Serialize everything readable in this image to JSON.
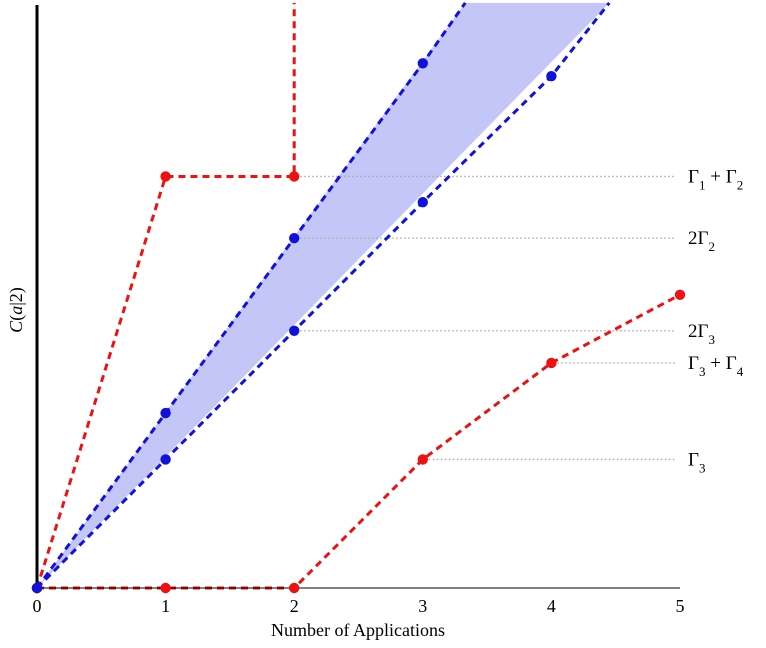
{
  "chart_data": {
    "type": "line",
    "xlabel": "Number of Applications",
    "ylabel": "C(a|2)",
    "xlim": [
      0,
      5
    ],
    "x_ticks": [
      0,
      1,
      2,
      3,
      4,
      5
    ],
    "grid": false,
    "legend": "none",
    "colors": {
      "red": "#ee1111",
      "blue": "#1111dd",
      "band_fill": "#c4c6f8",
      "guide": "#aaaaaa"
    },
    "series": [
      {
        "color": "red",
        "x": [
          0,
          1,
          2,
          2
        ],
        "y": [
          0,
          3.2,
          3.2,
          4.55
        ],
        "markers": [
          true,
          true,
          true,
          false
        ]
      },
      {
        "color": "red",
        "x": [
          0,
          1,
          2,
          3,
          4,
          5
        ],
        "y": [
          0,
          0,
          0,
          1.0,
          1.75,
          2.28
        ],
        "markers": [
          true,
          true,
          true,
          true,
          true,
          true
        ]
      },
      {
        "color": "blue",
        "x": [
          0,
          1,
          2,
          3,
          3.33
        ],
        "y": [
          0,
          1.36,
          2.72,
          4.08,
          4.55
        ],
        "markers": [
          true,
          true,
          true,
          true,
          false
        ]
      },
      {
        "color": "blue",
        "x": [
          0,
          1,
          2,
          3,
          4,
          4.45
        ],
        "y": [
          0,
          1.0,
          2.0,
          3.0,
          3.98,
          4.55
        ],
        "markers": [
          true,
          true,
          true,
          true,
          true,
          false
        ]
      }
    ],
    "shaded_band": {
      "upper": {
        "x": [
          0,
          3.33
        ],
        "y": [
          0,
          4.55
        ]
      },
      "lower": {
        "x": [
          0,
          4.45
        ],
        "y": [
          0,
          4.55
        ]
      }
    },
    "reference_lines": [
      {
        "from_x": 2,
        "y": 3.2,
        "label_main": "Γ",
        "label_sub": "1",
        "label_suffix_main": " + Γ",
        "label_suffix_sub": "2"
      },
      {
        "from_x": 2,
        "y": 2.72,
        "label_main": "2Γ",
        "label_sub": "2",
        "label_suffix_main": "",
        "label_suffix_sub": ""
      },
      {
        "from_x": 2,
        "y": 2.0,
        "label_main": "2Γ",
        "label_sub": "3",
        "label_suffix_main": "",
        "label_suffix_sub": ""
      },
      {
        "from_x": 4,
        "y": 1.75,
        "label_main": "Γ",
        "label_sub": "3",
        "label_suffix_main": " + Γ",
        "label_suffix_sub": "4"
      },
      {
        "from_x": 3,
        "y": 1.0,
        "label_main": "Γ",
        "label_sub": "3",
        "label_suffix_main": "",
        "label_suffix_sub": ""
      }
    ]
  }
}
